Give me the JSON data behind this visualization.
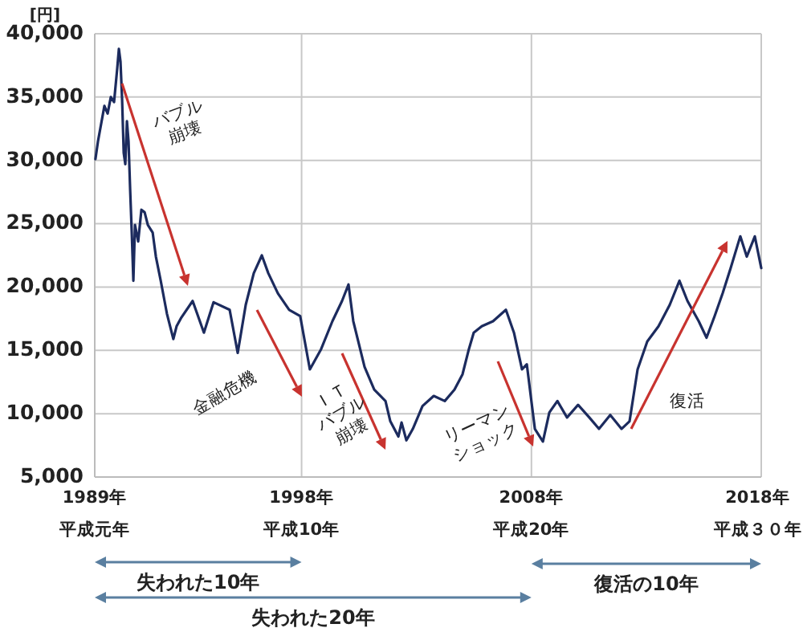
{
  "chart_data": {
    "type": "line",
    "ylabel": "[円]",
    "xlim": [
      1989,
      2018
    ],
    "ylim": [
      5000,
      40000
    ],
    "xticks": [
      {
        "value": 1989,
        "label": "1989年"
      },
      {
        "value": 1998,
        "label": "1998年"
      },
      {
        "value": 2008,
        "label": "2008年"
      },
      {
        "value": 2018,
        "label": "2018年"
      }
    ],
    "yticks": [
      {
        "value": 5000,
        "label": "5,000"
      },
      {
        "value": 10000,
        "label": "10,000"
      },
      {
        "value": 15000,
        "label": "15,000"
      },
      {
        "value": 20000,
        "label": "20,000"
      },
      {
        "value": 25000,
        "label": "25,000"
      },
      {
        "value": 30000,
        "label": "30,000"
      },
      {
        "value": 35000,
        "label": "35,000"
      },
      {
        "value": 40000,
        "label": "40,000"
      }
    ],
    "grid": true,
    "marker": "none",
    "line_style": "solid",
    "series": [
      {
        "color": "#1c2b5e",
        "x": [
          1989.03,
          1989.14,
          1989.42,
          1989.56,
          1989.7,
          1989.84,
          1989.98,
          1990.05,
          1990.12,
          1990.19,
          1990.26,
          1990.33,
          1990.4,
          1990.47,
          1990.54,
          1990.61,
          1990.68,
          1990.75,
          1990.89,
          1991.03,
          1991.17,
          1991.31,
          1991.52,
          1991.66,
          1991.87,
          1992.14,
          1992.42,
          1992.56,
          1992.77,
          1993.26,
          1993.75,
          1994.17,
          1994.87,
          1995.22,
          1995.57,
          1995.92,
          1996.27,
          1996.55,
          1996.97,
          1997.46,
          1997.94,
          1998.36,
          1998.85,
          1999.34,
          1999.76,
          2000.04,
          2000.25,
          2000.74,
          2001.16,
          2001.65,
          2001.86,
          2002.21,
          2002.35,
          2002.56,
          2002.84,
          2003.26,
          2003.75,
          2004.23,
          2004.65,
          2005.0,
          2005.28,
          2005.49,
          2005.84,
          2006.33,
          2006.89,
          2007.24,
          2007.59,
          2007.8,
          2008.15,
          2008.5,
          2008.78,
          2009.13,
          2009.55,
          2010.03,
          2010.52,
          2010.94,
          2011.43,
          2011.92,
          2012.27,
          2012.62,
          2013.04,
          2013.53,
          2014.02,
          2014.44,
          2014.79,
          2015.28,
          2015.62,
          2015.97,
          2016.32,
          2016.67,
          2017.02,
          2017.09,
          2017.37,
          2017.72,
          2018.0
        ],
        "values": [
          30100,
          31500,
          34300,
          33700,
          35000,
          34600,
          37300,
          38800,
          37800,
          34800,
          30600,
          29700,
          33100,
          31500,
          27700,
          24300,
          20500,
          24900,
          23600,
          26100,
          25900,
          24900,
          24300,
          22400,
          20500,
          17900,
          15900,
          16900,
          17600,
          18900,
          16400,
          18800,
          18200,
          14800,
          18600,
          21100,
          22500,
          21100,
          19500,
          18200,
          17700,
          13500,
          15100,
          17300,
          18900,
          20200,
          17300,
          13700,
          11900,
          11000,
          9400,
          8200,
          9300,
          7900,
          8800,
          10600,
          11400,
          11000,
          11900,
          13100,
          15100,
          16400,
          16900,
          17300,
          18200,
          16400,
          13500,
          13900,
          8800,
          7800,
          10100,
          11000,
          9700,
          10700,
          9700,
          8800,
          9900,
          8800,
          9400,
          13500,
          15700,
          16900,
          18600,
          20500,
          18900,
          17300,
          16000,
          17700,
          19500,
          21500,
          23600,
          24000,
          22400,
          24000,
          21500
        ]
      }
    ],
    "annotations": [
      "バブル\n崩壊",
      "金融危機",
      "ＩＴ\nバブル\n崩壊",
      "リーマン\nショック",
      "復活",
      "失われた10年",
      "失われた20年",
      "復活の10年",
      "平成元年",
      "平成10年",
      "平成20年",
      "平成３０年"
    ]
  }
}
